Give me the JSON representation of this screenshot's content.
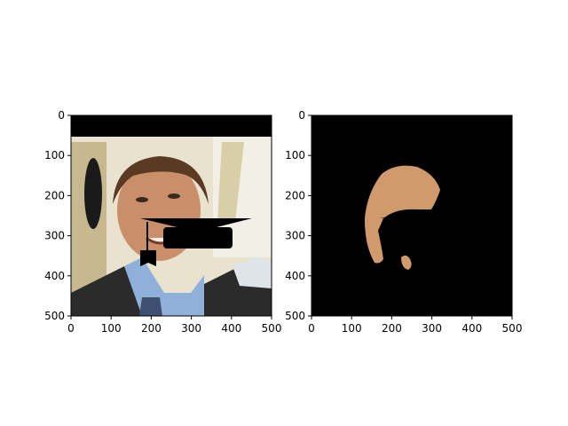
{
  "chart_data": [
    {
      "type": "image",
      "title": "",
      "xlabel": "",
      "ylabel": "",
      "xlim": [
        0,
        500
      ],
      "ylim": [
        500,
        0
      ],
      "xticks": [
        0,
        100,
        200,
        300,
        400,
        500
      ],
      "yticks": [
        0,
        100,
        200,
        300,
        400,
        500
      ],
      "content": "photo of a smiling man in a suit with a black graduation cap overlay and a black band across the top",
      "colors": {
        "background_band": "#000000",
        "cap": "#000000",
        "suit": "#2b2b2b",
        "shirt": "#8fb0d8",
        "skin": "#c98f6a",
        "hair": "#5a3a22",
        "backdrop": "#e8e2cf"
      }
    },
    {
      "type": "image",
      "title": "",
      "xlabel": "",
      "ylabel": "",
      "xlim": [
        0,
        500
      ],
      "ylim": [
        500,
        0
      ],
      "xticks": [
        0,
        100,
        200,
        300,
        400,
        500
      ],
      "yticks": [
        0,
        100,
        200,
        300,
        400,
        500
      ],
      "content": "segmentation mask: isolated face skin region on black background, partially occluded by cap shape",
      "colors": {
        "background": "#000000",
        "skin": "#d19a6c"
      }
    }
  ]
}
